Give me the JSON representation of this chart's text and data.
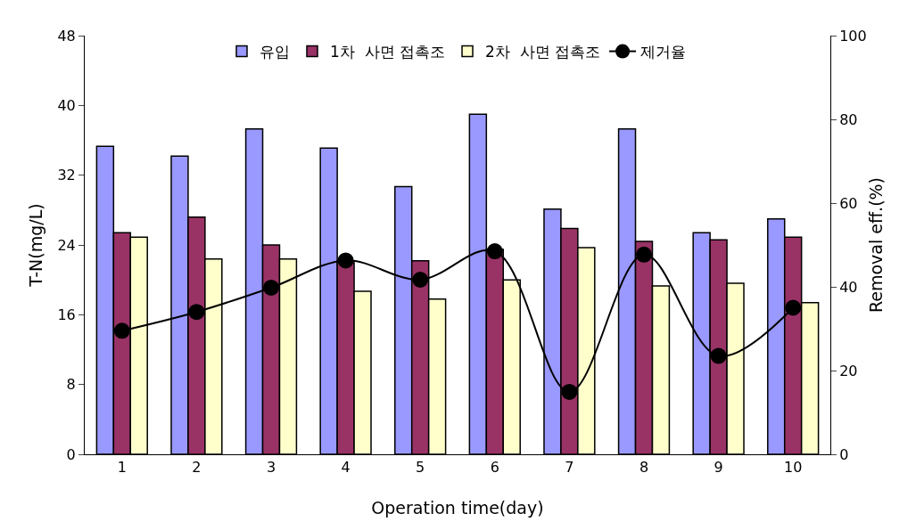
{
  "chart_data": {
    "type": "bar",
    "categories": [
      "1",
      "2",
      "3",
      "4",
      "5",
      "6",
      "7",
      "8",
      "9",
      "10"
    ],
    "xlabel": "Operation time(day)",
    "ylabel": "T-N(mg/L)",
    "y2label": "Removal eff.(%)",
    "ylim": [
      0,
      48
    ],
    "yticks": [
      0,
      8,
      16,
      24,
      32,
      40,
      48
    ],
    "y2lim": [
      0,
      100
    ],
    "y2ticks": [
      0,
      20,
      40,
      60,
      80,
      100
    ],
    "grid": false,
    "legend": "top",
    "series": [
      {
        "name": "유입",
        "color": "#9999ff",
        "values": [
          35.3,
          34.2,
          37.3,
          35.1,
          30.7,
          39.0,
          28.1,
          37.3,
          25.4,
          27.0
        ]
      },
      {
        "name": "1차  사면 접촉조",
        "color": "#993366",
        "values": [
          25.4,
          27.2,
          24.0,
          22.2,
          22.2,
          23.5,
          25.9,
          24.4,
          24.6,
          24.9
        ]
      },
      {
        "name": "2차  사면 접촉조",
        "color": "#ffffcc",
        "values": [
          24.9,
          22.4,
          22.4,
          18.7,
          17.8,
          20.0,
          23.7,
          19.3,
          19.6,
          17.4
        ]
      },
      {
        "name": "제거율",
        "type": "line",
        "axis": "y2",
        "color": "#000000",
        "marker": "circle",
        "line_style": "solid",
        "values": [
          29.5,
          34.0,
          39.8,
          46.3,
          41.7,
          48.5,
          14.9,
          47.7,
          23.5,
          35.0
        ]
      }
    ]
  }
}
